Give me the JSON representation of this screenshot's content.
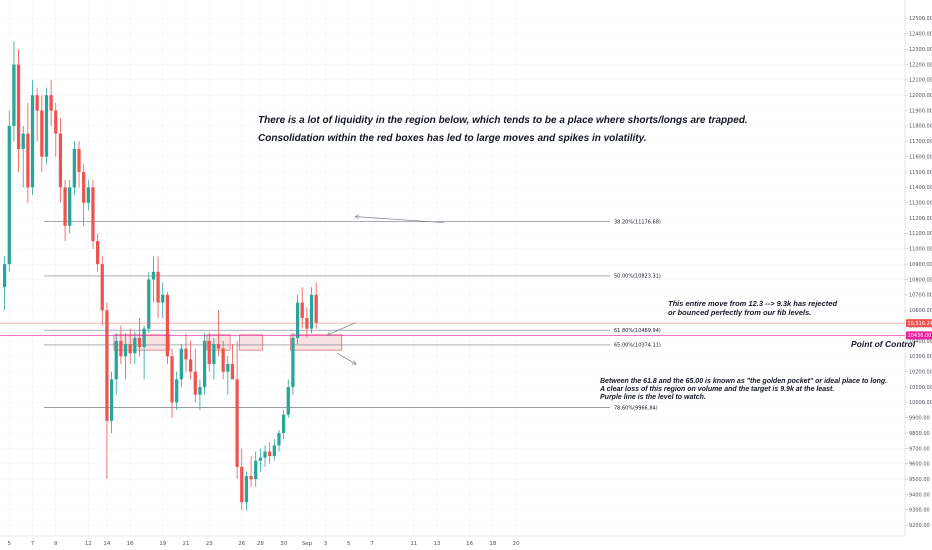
{
  "chart_data": {
    "type": "candlestick",
    "y_ticks": [
      9200,
      9300,
      9400,
      9500,
      9600,
      9700,
      9800,
      9900,
      10000,
      10100,
      10200,
      10300,
      10400,
      10500,
      10600,
      10700,
      10800,
      10900,
      11000,
      11100,
      11200,
      11300,
      11400,
      11500,
      11600,
      11700,
      11800,
      11900,
      12000,
      12100,
      12200,
      12300,
      12400,
      12500
    ],
    "y_tick_labels": [
      "9200.00",
      "9300.00",
      "9400.00",
      "9500.00",
      "9600.00",
      "9700.00",
      "9800.00",
      "9900.00",
      "10000.00",
      "10100.00",
      "10200.00",
      "10300.00",
      "10400.00",
      "10500.00",
      "10600.00",
      "10700.00",
      "10800.00",
      "10900.00",
      "11000.00",
      "11100.00",
      "11200.00",
      "11300.00",
      "11400.00",
      "11500.00",
      "11600.00",
      "11700.00",
      "11800.00",
      "11900.00",
      "12000.00",
      "12100.00",
      "12200.00",
      "12300.00",
      "12400.00",
      "12500.00"
    ],
    "ylim": [
      9130,
      12620
    ],
    "x_ticks": [
      {
        "label": "5",
        "bar": 1
      },
      {
        "label": "7",
        "bar": 6
      },
      {
        "label": "9",
        "bar": 11
      },
      {
        "label": "12",
        "bar": 18
      },
      {
        "label": "14",
        "bar": 22
      },
      {
        "label": "16",
        "bar": 27
      },
      {
        "label": "19",
        "bar": 34
      },
      {
        "label": "21",
        "bar": 39
      },
      {
        "label": "23",
        "bar": 44
      },
      {
        "label": "26",
        "bar": 51
      },
      {
        "label": "28",
        "bar": 55
      },
      {
        "label": "30",
        "bar": 60
      },
      {
        "label": "Sep",
        "bar": 65
      },
      {
        "label": "3",
        "bar": 69
      },
      {
        "label": "5",
        "bar": 74
      },
      {
        "label": "7",
        "bar": 79
      },
      {
        "label": "11",
        "bar": 88
      },
      {
        "label": "13",
        "bar": 93
      },
      {
        "label": "16",
        "bar": 100
      },
      {
        "label": "18",
        "bar": 105
      },
      {
        "label": "20",
        "bar": 110
      }
    ],
    "candles": [
      [
        10750,
        10950,
        10600,
        10900
      ],
      [
        10900,
        11900,
        10850,
        11800
      ],
      [
        11800,
        12350,
        11700,
        12200
      ],
      [
        12200,
        12300,
        11500,
        11650
      ],
      [
        11650,
        11800,
        11400,
        11750
      ],
      [
        11750,
        11950,
        11300,
        11400
      ],
      [
        11400,
        12100,
        11350,
        12000
      ],
      [
        12000,
        12050,
        11700,
        11900
      ],
      [
        11900,
        12000,
        11500,
        11600
      ],
      [
        11600,
        12050,
        11550,
        12000
      ],
      [
        12000,
        12100,
        11800,
        11900
      ],
      [
        11900,
        11950,
        11600,
        11750
      ],
      [
        11750,
        11850,
        11300,
        11400
      ],
      [
        11400,
        11450,
        11050,
        11150
      ],
      [
        11150,
        11450,
        11100,
        11400
      ],
      [
        11400,
        11700,
        11350,
        11650
      ],
      [
        11650,
        11700,
        11400,
        11500
      ],
      [
        11500,
        11550,
        11150,
        11300
      ],
      [
        11300,
        11450,
        11250,
        11400
      ],
      [
        11400,
        11450,
        11000,
        11050
      ],
      [
        11050,
        11100,
        10850,
        10900
      ],
      [
        10900,
        10950,
        10500,
        10600
      ],
      [
        10600,
        10650,
        9500,
        9880
      ],
      [
        9880,
        10200,
        9800,
        10150
      ],
      [
        10150,
        10450,
        10050,
        10400
      ],
      [
        10400,
        10500,
        10250,
        10300
      ],
      [
        10300,
        10450,
        10150,
        10380
      ],
      [
        10380,
        10480,
        10250,
        10320
      ],
      [
        10320,
        10460,
        10250,
        10420
      ],
      [
        10420,
        10550,
        10300,
        10360
      ],
      [
        10360,
        10500,
        10150,
        10480
      ],
      [
        10480,
        10850,
        10450,
        10800
      ],
      [
        10800,
        10950,
        10650,
        10850
      ],
      [
        10850,
        10950,
        10550,
        10650
      ],
      [
        10650,
        10780,
        10550,
        10700
      ],
      [
        10700,
        10720,
        10250,
        10300
      ],
      [
        10300,
        10350,
        9900,
        10000
      ],
      [
        10000,
        10200,
        9950,
        10150
      ],
      [
        10150,
        10380,
        10100,
        10350
      ],
      [
        10350,
        10450,
        10200,
        10280
      ],
      [
        10280,
        10400,
        10150,
        10200
      ],
      [
        10200,
        10350,
        10000,
        10050
      ],
      [
        10050,
        10150,
        9950,
        10100
      ],
      [
        10100,
        10450,
        10050,
        10400
      ],
      [
        10400,
        10460,
        10200,
        10250
      ],
      [
        10250,
        10420,
        10150,
        10380
      ],
      [
        10380,
        10600,
        10300,
        10350
      ],
      [
        10350,
        10400,
        10150,
        10200
      ],
      [
        10200,
        10300,
        10050,
        10250
      ],
      [
        10250,
        10380,
        10150,
        10150
      ],
      [
        10150,
        10400,
        9500,
        9580
      ],
      [
        9580,
        9700,
        9300,
        9350
      ],
      [
        9350,
        9550,
        9300,
        9520
      ],
      [
        9520,
        9650,
        9450,
        9500
      ],
      [
        9500,
        9680,
        9450,
        9620
      ],
      [
        9620,
        9700,
        9550,
        9640
      ],
      [
        9640,
        9720,
        9580,
        9680
      ],
      [
        9680,
        9740,
        9600,
        9650
      ],
      [
        9650,
        9760,
        9620,
        9720
      ],
      [
        9720,
        9820,
        9680,
        9800
      ],
      [
        9800,
        9950,
        9760,
        9920
      ],
      [
        9920,
        10150,
        9900,
        10100
      ],
      [
        10100,
        10450,
        10050,
        10420
      ],
      [
        10420,
        10700,
        10380,
        10650
      ],
      [
        10650,
        10750,
        10480,
        10550
      ],
      [
        10550,
        10620,
        10420,
        10480
      ],
      [
        10480,
        10750,
        10450,
        10700
      ],
      [
        10700,
        10780,
        10480,
        10520
      ]
    ],
    "fib_levels": [
      {
        "label": "38.20%(11176.68)",
        "value": 11176.68
      },
      {
        "label": "50.00%(10823.31)",
        "value": 10823.31
      },
      {
        "label": "61.80%(10469.94)",
        "value": 10469.94
      },
      {
        "label": "65.00%(10374.11)",
        "value": 10374.11
      },
      {
        "label": "78.60%(9966.84)",
        "value": 9966.84
      }
    ],
    "zones": [
      {
        "from_bar": 24,
        "to_bar": 35,
        "low": 10340,
        "high": 10440
      },
      {
        "from_bar": 44,
        "to_bar": 48,
        "low": 10340,
        "high": 10440
      },
      {
        "from_bar": 51,
        "to_bar": 55,
        "low": 10340,
        "high": 10440
      },
      {
        "from_bar": 62,
        "to_bar": 72,
        "low": 10340,
        "high": 10440
      }
    ],
    "price_badges": [
      {
        "label": "10,516.24",
        "value": 10516,
        "color": "#ef5350"
      },
      {
        "label": "10436.00",
        "value": 10436,
        "color": "#e91e9b"
      }
    ],
    "poc_value": 10436,
    "annotation_arrows": [
      {
        "from": [
          11170,
          95
        ],
        "to": [
          11210,
          76
        ]
      },
      {
        "from": [
          10520,
          76
        ],
        "to": [
          10440,
          70
        ]
      },
      {
        "from": [
          10320,
          72
        ],
        "to": [
          10250,
          76
        ]
      }
    ],
    "colors": {
      "up": "#26a69a",
      "down": "#ef5350",
      "fib_line": "#787b86",
      "zone_fill": "#f5d5d5",
      "zone_border": "#e57373",
      "poc": "#e91e9b",
      "grid": "#f0f3fa"
    }
  },
  "annotations": {
    "liquidity": "There is a lot of liquidity in the region below, which tends to be a place where shorts/longs are trapped.",
    "consolidation": "Consolidation within the red boxes has led to large moves and spikes in volatility.",
    "fib_move_1": "This entire move from 12.3 --> 9.3k has rejected",
    "fib_move_2": "or bounced perfectly from our fib levels.",
    "golden_1": "Between the 61.8 and the 65.00 is known as \"the golden pocket\" or ideal place to long.",
    "golden_2": "A clear loss of this region on volume and the target is 9.9k at the least.",
    "golden_3": "Purple line is the level to watch.",
    "poc": "Point of Control"
  }
}
